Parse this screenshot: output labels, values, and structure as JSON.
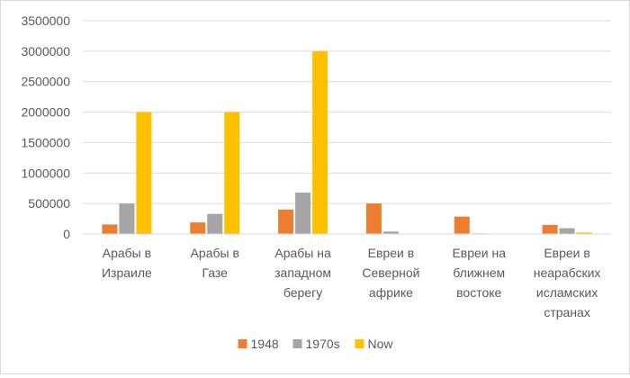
{
  "chart_data": {
    "type": "bar",
    "categories": [
      [
        "Арабы в",
        "Израиле"
      ],
      [
        "Арабы в",
        "Газе"
      ],
      [
        "Арабы на",
        "западном",
        "берегу"
      ],
      [
        "Евреи в",
        "Северной",
        "африке"
      ],
      [
        "Евреи на",
        "ближнем",
        "востоке"
      ],
      [
        "Евреи в",
        "неарабских",
        "исламских",
        "странах"
      ]
    ],
    "series": [
      {
        "name": "1948",
        "color": "#ED7D31",
        "values": [
          156000,
          190000,
          400000,
          500000,
          285000,
          150000
        ]
      },
      {
        "name": "1970s",
        "color": "#A5A5A5",
        "values": [
          500000,
          330000,
          680000,
          40000,
          10000,
          95000
        ]
      },
      {
        "name": "Now",
        "color": "#FFC000",
        "values": [
          2000000,
          2000000,
          3000000,
          3000,
          2000,
          25000
        ]
      }
    ],
    "ylim": [
      0,
      3500000
    ],
    "yticks": [
      "0",
      "500000",
      "1000000",
      "1500000",
      "2000000",
      "2500000",
      "3000000",
      "3500000"
    ],
    "grid": true,
    "legend_position": "bottom",
    "title": "",
    "xlabel": "",
    "ylabel": ""
  }
}
